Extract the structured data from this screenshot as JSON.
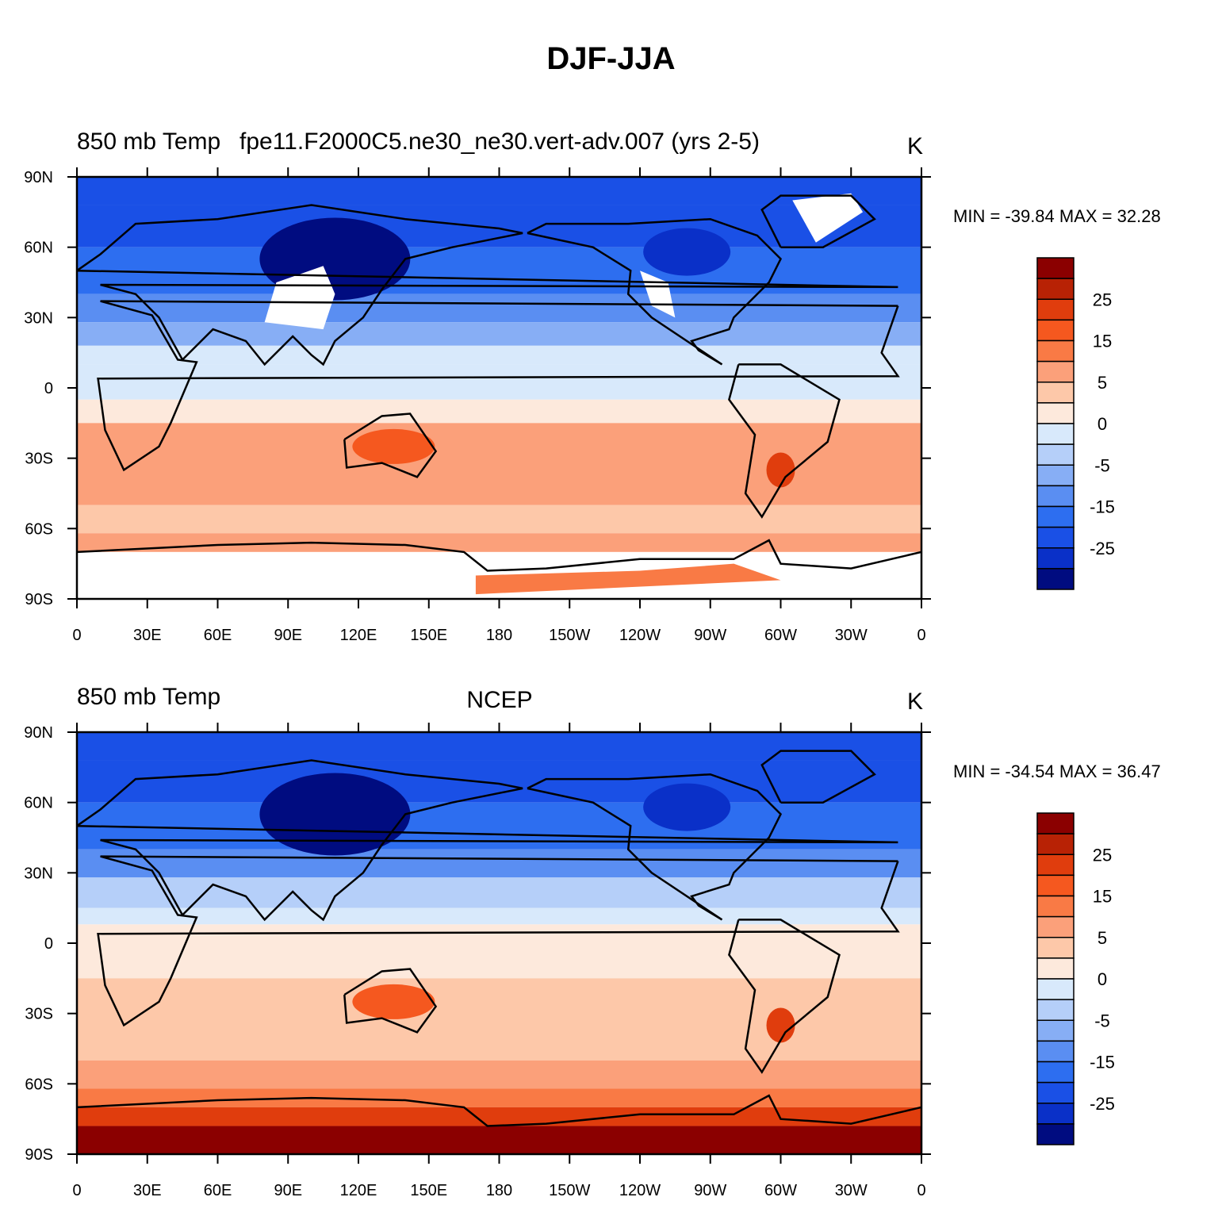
{
  "title": "DJF-JJA",
  "panels": [
    {
      "left_string": "850 mb Temp",
      "center_string": "fpe11.F2000C5.ne30_ne30.vert-adv.007 (yrs 2-5)",
      "right_string": "K",
      "minmax_text": "MIN = -39.84 MAX =  32.28",
      "antarctica_field": "missing"
    },
    {
      "left_string": "850 mb Temp",
      "center_string": "NCEP",
      "right_string": "K",
      "minmax_text": "MIN = -34.54 MAX =  36.47",
      "antarctica_field": "warm"
    }
  ],
  "lat_ticks": [
    "90N",
    "60N",
    "30N",
    "0",
    "30S",
    "60S",
    "90S"
  ],
  "lon_ticks": [
    "0",
    "30E",
    "60E",
    "90E",
    "120E",
    "150E",
    "180",
    "150W",
    "120W",
    "90W",
    "60W",
    "30W",
    "0"
  ],
  "colorbar": {
    "levels": [
      30,
      25,
      20,
      15,
      10,
      5,
      0,
      -5,
      -10,
      -15,
      -20,
      -25,
      -30
    ],
    "labels": [
      "25",
      "15",
      "5",
      "0",
      "-5",
      "-15",
      "-25"
    ],
    "colors": [
      "#8b0000",
      "#b82205",
      "#e03d0d",
      "#f5581f",
      "#f97a45",
      "#fba07a",
      "#fdc8a9",
      "#fde9dc",
      "#d8e9fb",
      "#b5cff9",
      "#87aef5",
      "#5a8ef2",
      "#2d6ef0",
      "#1a50e6",
      "#0a30c8",
      "#000c80"
    ]
  }
}
